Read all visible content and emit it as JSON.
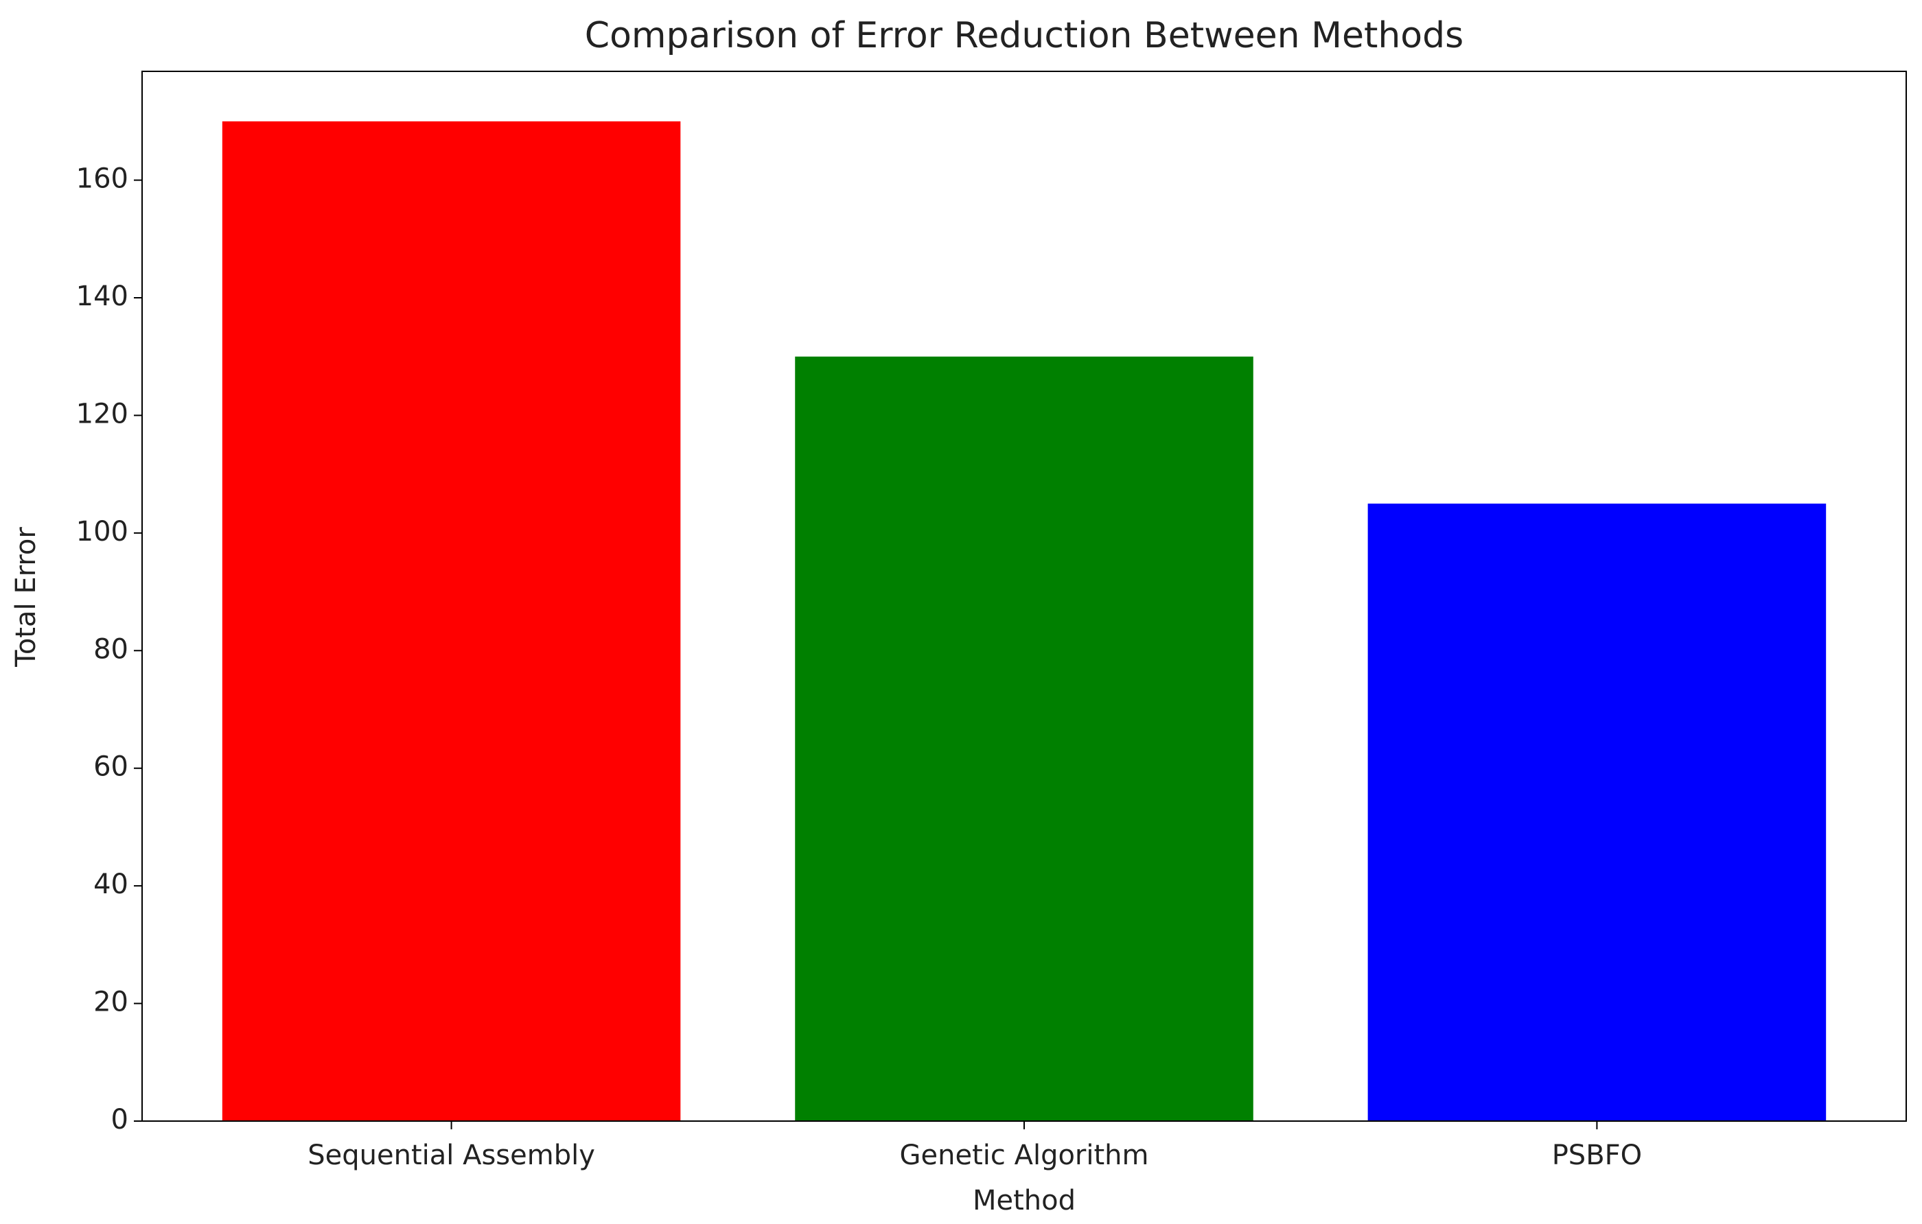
{
  "chart_data": {
    "type": "bar",
    "title": "Comparison of Error Reduction Between Methods",
    "x_label": "Method",
    "y_label": "Total Error",
    "categories": [
      "Sequential Assembly",
      "Genetic Algorithm",
      "PSBFO"
    ],
    "values": [
      170,
      130,
      105
    ],
    "colors": [
      "#ff0000",
      "#008000",
      "#0000ff"
    ],
    "ylim": [
      0,
      178.5
    ],
    "yticks": [
      0,
      20,
      40,
      60,
      80,
      100,
      120,
      140,
      160
    ],
    "grid": false
  }
}
